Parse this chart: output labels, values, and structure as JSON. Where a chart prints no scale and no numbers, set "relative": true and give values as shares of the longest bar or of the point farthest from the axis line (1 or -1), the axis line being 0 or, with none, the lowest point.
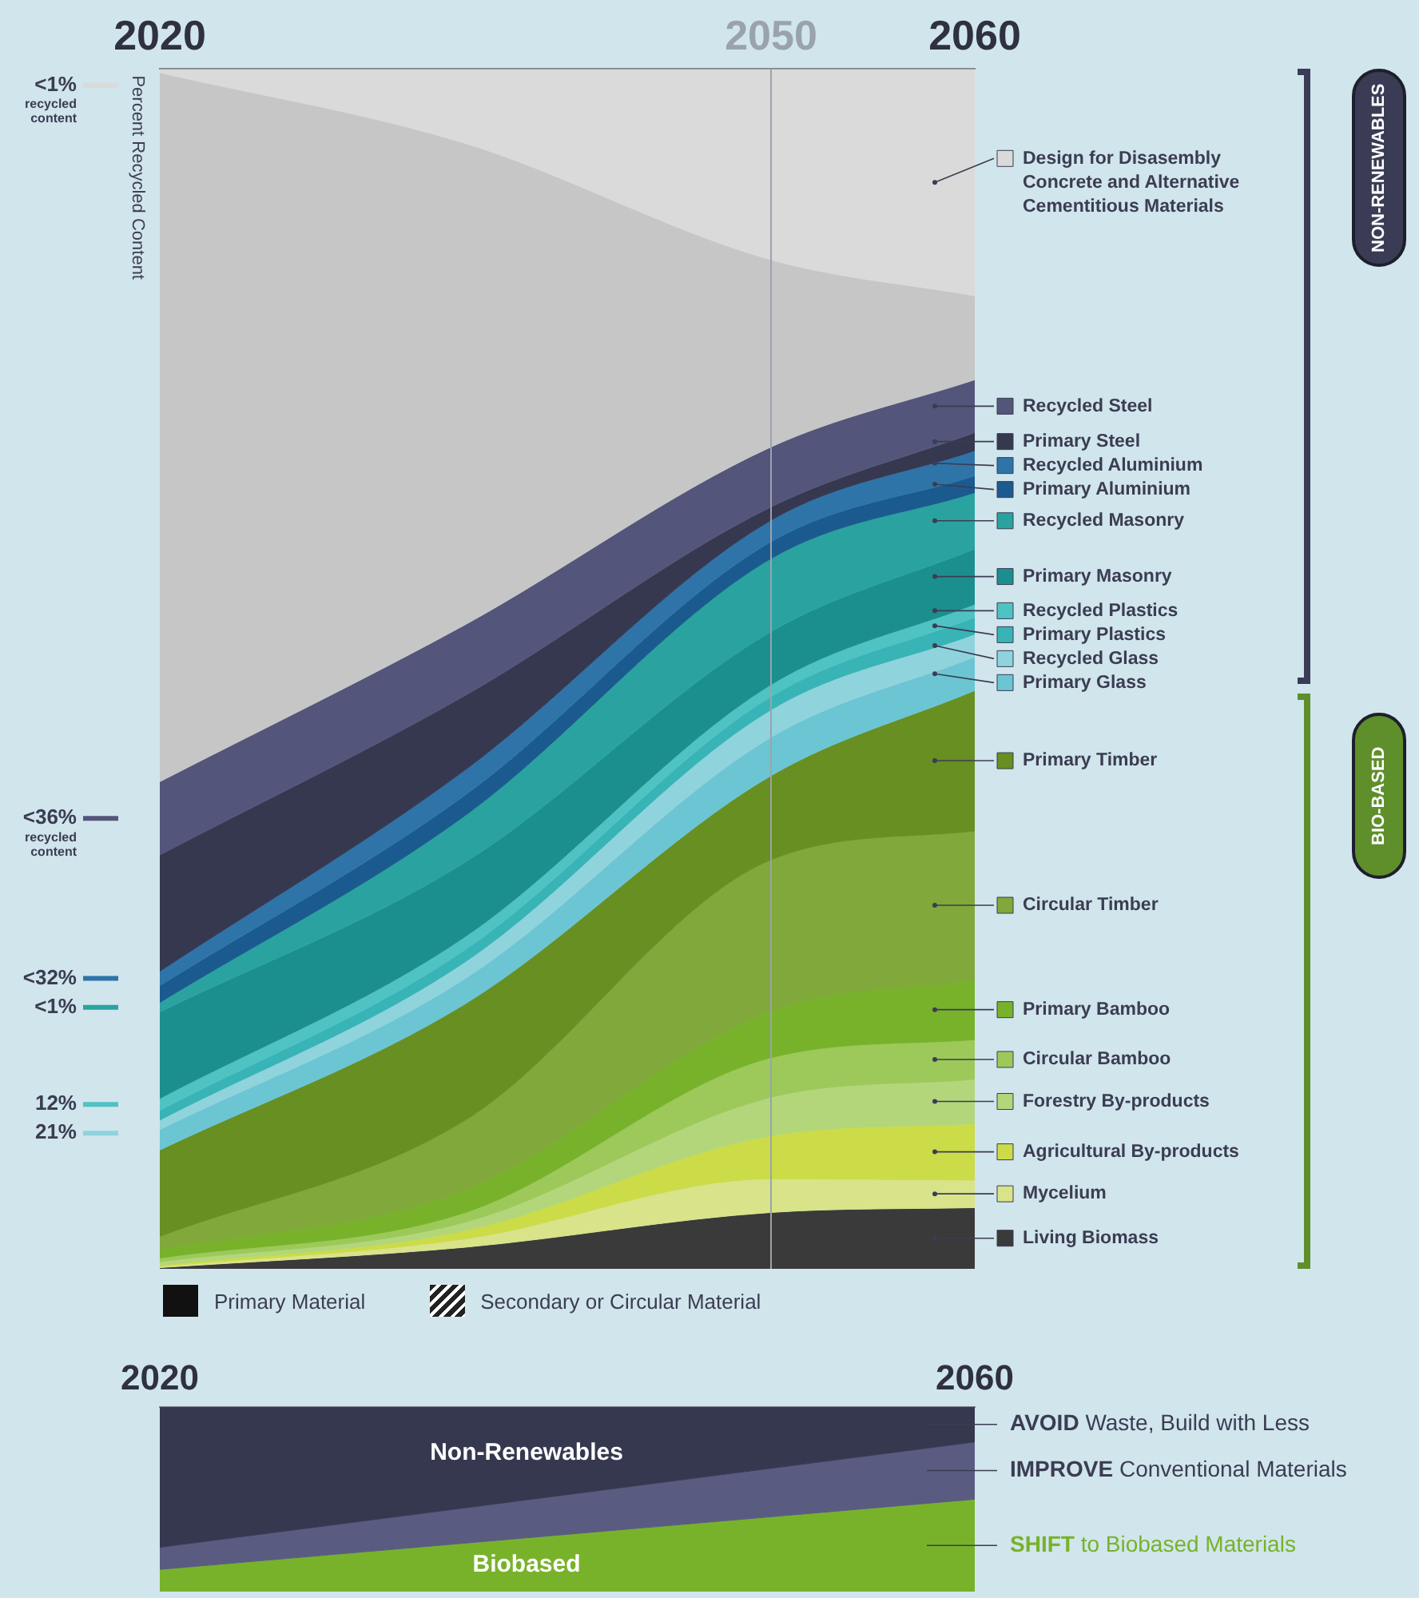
{
  "chart_data": [
    {
      "type": "area",
      "stacked": true,
      "relative": true,
      "x": [
        2020,
        2035,
        2050,
        2060
      ],
      "xlim": [
        2020,
        2060
      ],
      "xticks": [
        2020,
        2050,
        2060
      ],
      "ref_lines": [
        {
          "axis": "x",
          "value": 2050,
          "color": "#9aa3ab"
        }
      ],
      "legend": "right",
      "series": [
        {
          "name": "Design for Disasembly Concrete and Alternative Cementitious Materials",
          "color": "#dadada",
          "values": [
            -0.003,
            -0.062,
            -0.159,
            -0.189
          ]
        },
        {
          "color": "#c6c6c6",
          "values": [
            -0.591,
            -0.401,
            -0.156,
            -0.07
          ]
        },
        {
          "name": "Recycled Steel",
          "color": "#53567a",
          "values": [
            -0.061,
            -0.059,
            -0.05,
            -0.044
          ]
        },
        {
          "name": "Primary Steel",
          "color": "#363850",
          "values": [
            -0.097,
            -0.062,
            -0.011,
            -0.015
          ]
        },
        {
          "name": "Recycled Aluminium",
          "color": "#2f74a8",
          "values": [
            -0.012,
            -0.021,
            -0.018,
            -0.021
          ]
        },
        {
          "name": "Primary Aluminium",
          "color": "#1b5a8e",
          "values": [
            -0.014,
            -0.017,
            -0.014,
            -0.014
          ]
        },
        {
          "name": "Recycled Masonry",
          "color": "#2aa3a0",
          "values": [
            -0.008,
            -0.039,
            -0.061,
            -0.047
          ]
        },
        {
          "name": "Primary Masonry",
          "color": "#1b8f8d",
          "values": [
            -0.072,
            -0.062,
            -0.044,
            -0.046
          ]
        },
        {
          "name": "Recycled Plastics",
          "color": "#4fc2c4",
          "values": [
            -0.01,
            -0.011,
            -0.01,
            -0.011
          ]
        },
        {
          "name": "Primary Plastics",
          "color": "#38b3b6",
          "values": [
            -0.008,
            -0.01,
            -0.011,
            -0.014
          ]
        },
        {
          "name": "Recycled Glass",
          "color": "#8fd3dd",
          "values": [
            -0.008,
            -0.014,
            -0.023,
            -0.019
          ]
        },
        {
          "name": "Primary Glass",
          "color": "#6cc5d3",
          "values": [
            -0.017,
            -0.021,
            -0.032,
            -0.028
          ]
        },
        {
          "name": "Primary Timber",
          "color": "#678f22",
          "values": [
            -0.072,
            -0.097,
            -0.07,
            -0.117
          ]
        },
        {
          "name": "Circular Timber",
          "color": "#80a83a",
          "values": [
            -0.011,
            -0.058,
            -0.126,
            -0.124
          ]
        },
        {
          "name": "Primary Bamboo",
          "color": "#78b22b",
          "values": [
            -0.007,
            -0.019,
            -0.039,
            -0.05
          ]
        },
        {
          "name": "Circular Bamboo",
          "color": "#9cc95a",
          "values": [
            -0.003,
            -0.008,
            -0.033,
            -0.033
          ]
        },
        {
          "name": "Forestry By-products",
          "color": "#b3d67b",
          "values": [
            -0.003,
            -0.007,
            -0.032,
            -0.037
          ]
        },
        {
          "name": "Agricultural By-products",
          "color": "#cbdc48",
          "values": [
            -0.001,
            -0.007,
            -0.036,
            -0.047
          ]
        },
        {
          "name": "Mycelium",
          "color": "#d9e38a",
          "values": [
            -0.001,
            -0.007,
            -0.028,
            -0.023
          ]
        },
        {
          "name": "Living Biomass",
          "color": "#3a3a3a",
          "values": [
            -0.001,
            -0.018,
            -0.047,
            -0.051
          ]
        }
      ],
      "annotations": [
        "Percent Recycled Content",
        "<1% recycled content",
        "<36% recycled content",
        "<32%",
        "<1%",
        "12%",
        "21%",
        "Primary Material",
        "Secondary or Circular Material",
        "NON-RENEWABLES",
        "BIO-BASED"
      ]
    },
    {
      "type": "area",
      "stacked": true,
      "relative": true,
      "x": [
        2020,
        2060
      ],
      "xlim": [
        2020,
        2060
      ],
      "xticks": [
        2020,
        2060
      ],
      "series": [
        {
          "name": "Non-Renewables",
          "color": "#363850",
          "values": [
            -0.76,
            -0.19
          ]
        },
        {
          "color": "#595c80",
          "values": [
            -0.12,
            -0.31
          ]
        },
        {
          "name": "Biobased",
          "color": "#78b22b",
          "values": [
            -0.12,
            -0.5
          ]
        }
      ],
      "annotations": [
        "AVOID Waste, Build with Less",
        "IMPROVE Conventional Materials",
        "SHIFT to Biobased Materials"
      ]
    }
  ]
}
